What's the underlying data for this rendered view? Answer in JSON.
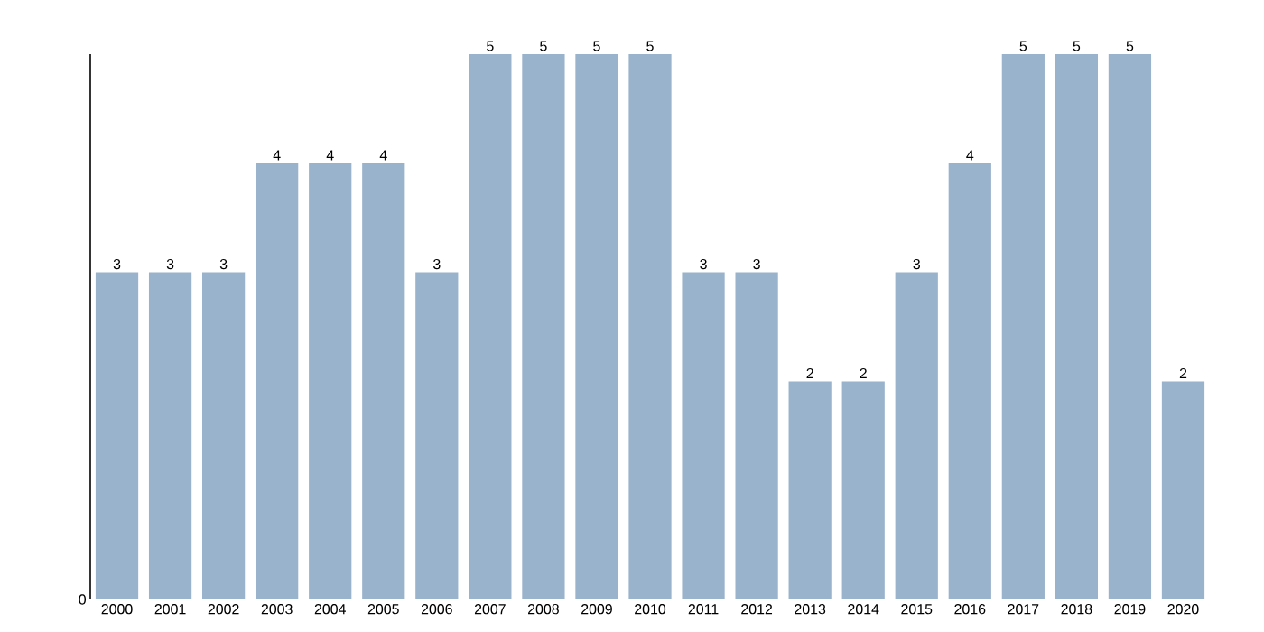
{
  "chart_data": {
    "type": "bar",
    "categories": [
      "2000",
      "2001",
      "2002",
      "2003",
      "2004",
      "2005",
      "2006",
      "2007",
      "2008",
      "2009",
      "2010",
      "2011",
      "2012",
      "2013",
      "2014",
      "2015",
      "2016",
      "2017",
      "2018",
      "2019",
      "2020"
    ],
    "values": [
      3,
      3,
      3,
      4,
      4,
      4,
      3,
      5,
      5,
      5,
      5,
      3,
      3,
      2,
      2,
      3,
      4,
      5,
      5,
      5,
      2
    ],
    "color": "#9ab3cc",
    "ylim": [
      0,
      5
    ],
    "annotations": [
      "0"
    ],
    "data_labels": true
  }
}
